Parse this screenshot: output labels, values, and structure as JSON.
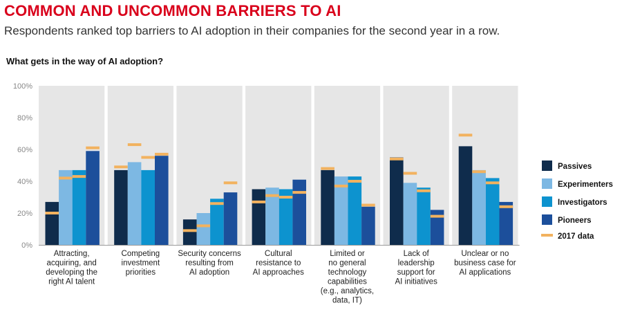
{
  "title": "COMMON AND UNCOMMON BARRIERS TO AI",
  "subtitle": "Respondents ranked top barriers to AI adoption in their companies for the second year in a row.",
  "question": "What gets in the way of AI adoption?",
  "colors": {
    "panel_bg": "#e6e6e6",
    "marker_2017": "#f2b25f",
    "Passives": "#0f2c4c",
    "Experimenters": "#7db8e3",
    "Investigators": "#0d93cf",
    "Pioneers": "#1c4f9b"
  },
  "chart_data": {
    "type": "bar",
    "ylabel": "",
    "ylim": [
      0,
      100
    ],
    "yticks": [
      "0%",
      "20%",
      "40%",
      "60%",
      "80%",
      "100%"
    ],
    "legend_position": "right",
    "marker_legend": "2017 data",
    "categories": [
      [
        "Attracting,",
        "acquiring, and",
        "developing the",
        "right AI talent"
      ],
      [
        "Competing",
        "investment",
        "priorities"
      ],
      [
        "Security concerns",
        "resulting from",
        "AI adoption"
      ],
      [
        "Cultural",
        "resistance to",
        "AI approaches"
      ],
      [
        "Limited or",
        "no general",
        "technology",
        "capabilities",
        "(e.g., analytics,",
        "data, IT)"
      ],
      [
        "Lack of",
        "leadership",
        "support for",
        "AI initiatives"
      ],
      [
        "Unclear or no",
        "business case for",
        "AI applications"
      ]
    ],
    "series": [
      {
        "name": "Passives",
        "values": [
          27,
          47,
          16,
          35,
          47,
          55,
          62
        ],
        "values_2017": [
          20,
          49,
          9,
          27,
          48,
          54,
          69
        ]
      },
      {
        "name": "Experimenters",
        "values": [
          47,
          52,
          20,
          36,
          43,
          39,
          47
        ],
        "values_2017": [
          42,
          63,
          12,
          31,
          37,
          45,
          46
        ]
      },
      {
        "name": "Investigators",
        "values": [
          47,
          47,
          29,
          35,
          43,
          36,
          42
        ],
        "values_2017": [
          43,
          55,
          26,
          30,
          40,
          34,
          39
        ]
      },
      {
        "name": "Pioneers",
        "values": [
          59,
          56,
          33,
          41,
          24,
          22,
          27
        ],
        "values_2017": [
          61,
          57,
          39,
          33,
          25,
          18,
          24
        ]
      }
    ]
  }
}
